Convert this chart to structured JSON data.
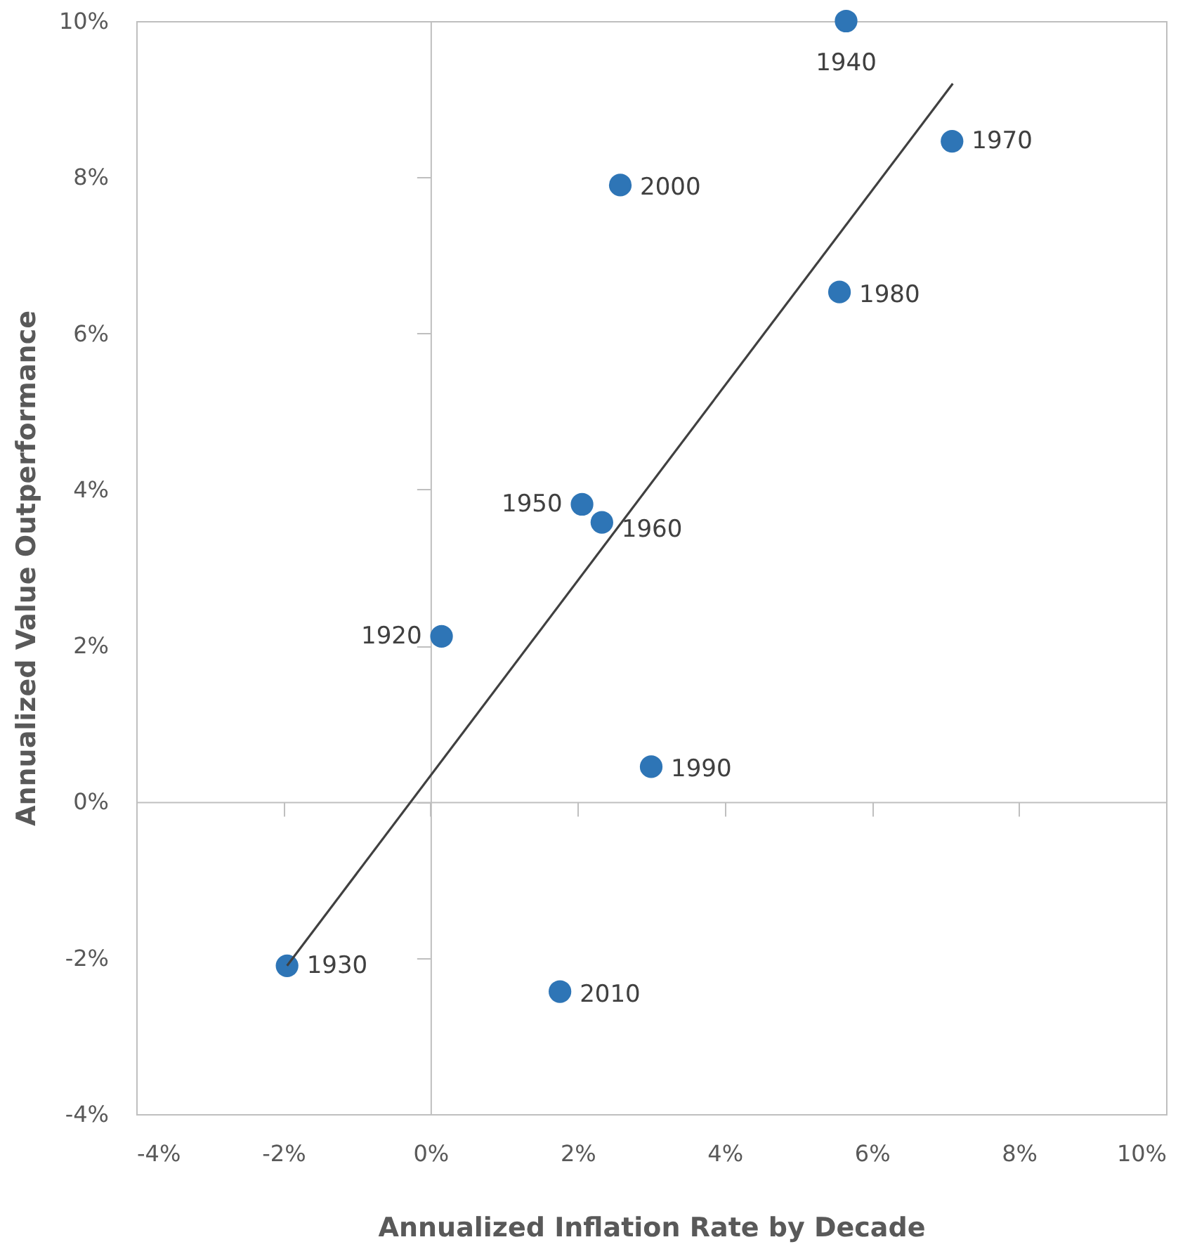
{
  "chart_data": {
    "type": "scatter",
    "xlabel": "Annualized Inflation Rate by Decade",
    "ylabel": "Annualized Value Outperformance",
    "series": [
      {
        "color": "#2e75b6",
        "marker": "circle",
        "x": [
          0.15,
          -1.95,
          5.65,
          2.06,
          2.33,
          7.09,
          5.56,
          3.0,
          2.58,
          1.76
        ],
        "values": [
          2.12,
          -2.1,
          10.0,
          3.81,
          3.58,
          8.46,
          6.53,
          0.45,
          7.9,
          -2.43
        ]
      },
      {
        "type": "line",
        "color": "#404040",
        "x": [
          -1.95,
          7.1
        ],
        "values": [
          -2.1,
          9.2
        ]
      }
    ],
    "annotations": [
      {
        "text": "1920",
        "x": 0.15,
        "y": 2.12
      },
      {
        "text": "1930",
        "x": -1.95,
        "y": -2.1
      },
      {
        "text": "1940",
        "x": 5.65,
        "y": 10.0
      },
      {
        "text": "1950",
        "x": 2.06,
        "y": 3.81
      },
      {
        "text": "1960",
        "x": 2.33,
        "y": 3.58
      },
      {
        "text": "1970",
        "x": 7.09,
        "y": 8.46
      },
      {
        "text": "1980",
        "x": 5.56,
        "y": 6.53
      },
      {
        "text": "1990",
        "x": 3.0,
        "y": 0.45
      },
      {
        "text": "2000",
        "x": 2.58,
        "y": 7.9
      },
      {
        "text": "2010",
        "x": 1.76,
        "y": -2.43
      }
    ],
    "xlim": [
      -4,
      10
    ],
    "ylim": [
      -4,
      10
    ],
    "xticks": [
      {
        "value": -4,
        "label": "-4%"
      },
      {
        "value": -2,
        "label": "-2%"
      },
      {
        "value": 0,
        "label": "0%"
      },
      {
        "value": 2,
        "label": "2%"
      },
      {
        "value": 4,
        "label": "4%"
      },
      {
        "value": 6,
        "label": "6%"
      },
      {
        "value": 8,
        "label": "8%"
      },
      {
        "value": 10,
        "label": "10%"
      }
    ],
    "yticks": [
      {
        "value": -4,
        "label": "-4%"
      },
      {
        "value": -2,
        "label": "-2%"
      },
      {
        "value": 0,
        "label": "0%"
      },
      {
        "value": 2,
        "label": "2%"
      },
      {
        "value": 4,
        "label": "4%"
      },
      {
        "value": 6,
        "label": "6%"
      },
      {
        "value": 8,
        "label": "8%"
      },
      {
        "value": 10,
        "label": "10%"
      }
    ],
    "line_style": "solid"
  }
}
